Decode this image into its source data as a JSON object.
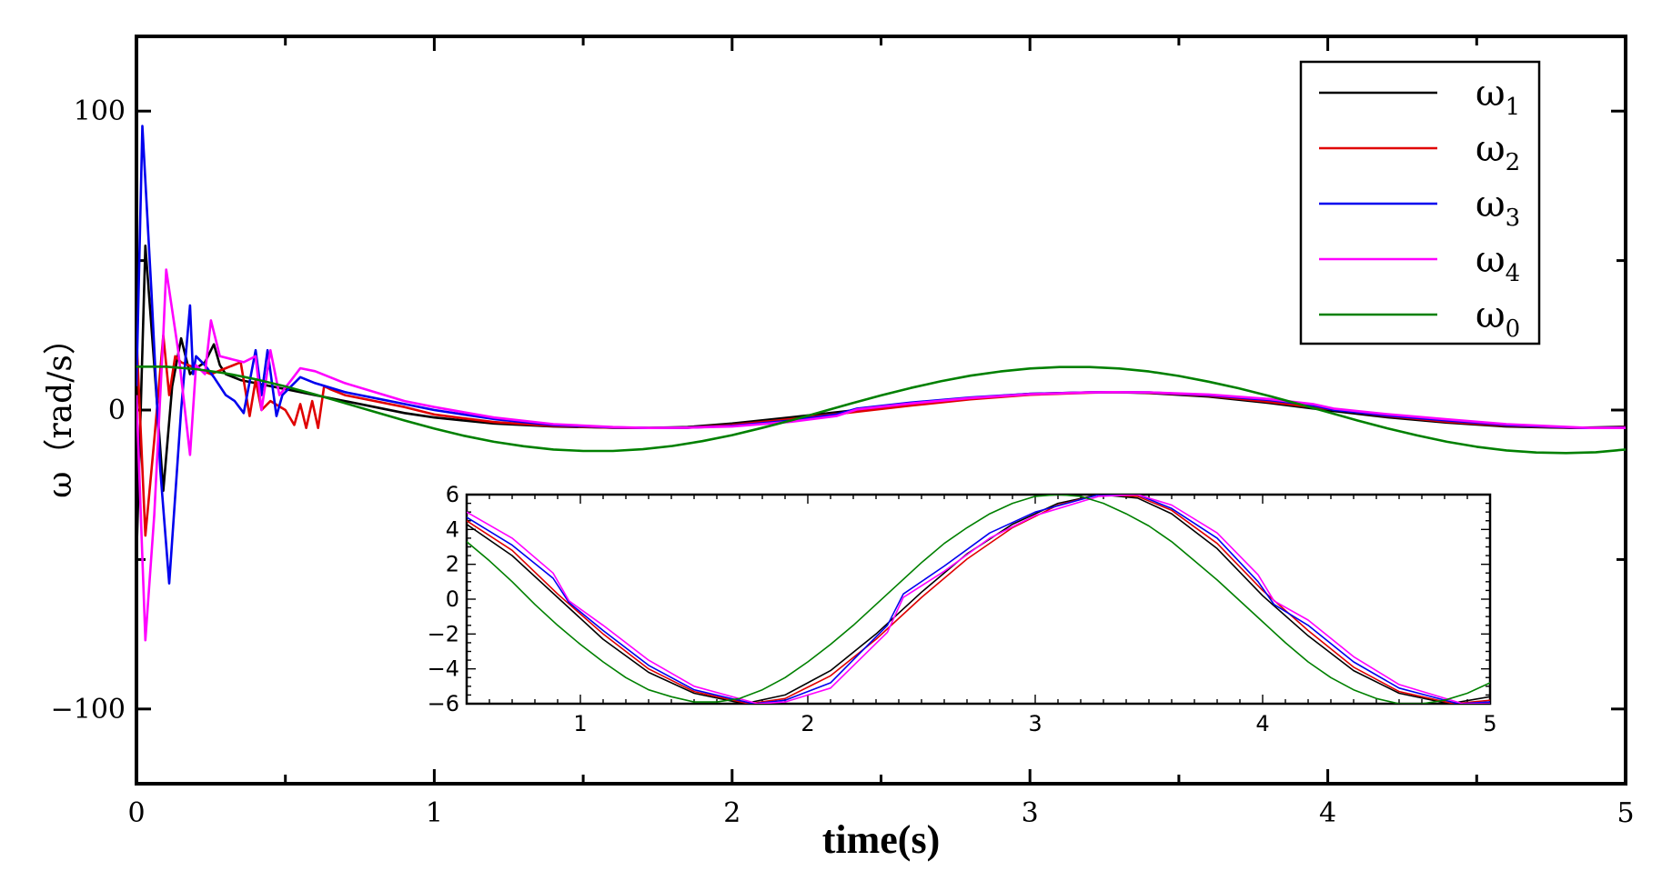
{
  "chart_data": [
    {
      "type": "line",
      "xlabel": "time(s)",
      "ylabel": "ω（rad/s）",
      "xlim": [
        0,
        5
      ],
      "ylim": [
        -125,
        125
      ],
      "xticks": [
        0,
        1,
        2,
        3,
        4,
        5
      ],
      "xtick_labels": [
        "0",
        "1",
        "2",
        "3",
        "4",
        "5"
      ],
      "yticks": [
        -100,
        0,
        100
      ],
      "ytick_labels": [
        "−100",
        "0",
        "100"
      ],
      "grid": false,
      "legend_position": "top-right",
      "series": [
        {
          "name": "ω1",
          "legend_symbol": "ω",
          "legend_sub": "1",
          "color": "#000000",
          "x": [
            0,
            0.03,
            0.06,
            0.09,
            0.12,
            0.15,
            0.18,
            0.2,
            0.23,
            0.26,
            0.28,
            0.3,
            0.35,
            0.4,
            0.45,
            0.5,
            0.6,
            0.7,
            0.8,
            0.9,
            1.0,
            1.2,
            1.4,
            1.6,
            1.72,
            1.85,
            2.0,
            2.2,
            2.4,
            2.6,
            2.8,
            3.0,
            3.2,
            3.28,
            3.4,
            3.6,
            3.8,
            4.0,
            4.2,
            4.4,
            4.6,
            4.82,
            5.0
          ],
          "y": [
            -50,
            55,
            15,
            -27,
            8,
            24,
            12,
            14,
            16,
            22,
            15,
            12,
            10,
            9,
            8,
            7,
            5,
            3,
            1,
            -1,
            -2.5,
            -4.5,
            -5.5,
            -5.9,
            -6,
            -5.7,
            -4.5,
            -2.4,
            -0.2,
            2,
            4,
            5.4,
            5.9,
            6,
            5.7,
            4.5,
            2.4,
            -0.1,
            -2.4,
            -4.2,
            -5.5,
            -6,
            -5.6
          ]
        },
        {
          "name": "ω2",
          "legend_symbol": "ω",
          "legend_sub": "2",
          "color": "#e00000",
          "x": [
            0,
            0.03,
            0.06,
            0.09,
            0.11,
            0.13,
            0.15,
            0.2,
            0.25,
            0.3,
            0.35,
            0.38,
            0.4,
            0.42,
            0.45,
            0.5,
            0.53,
            0.55,
            0.57,
            0.59,
            0.61,
            0.63,
            0.65,
            0.7,
            0.8,
            0.9,
            1.0,
            1.2,
            1.4,
            1.6,
            1.72,
            1.85,
            2.0,
            2.2,
            2.4,
            2.6,
            2.8,
            3.0,
            3.2,
            3.28,
            3.4,
            3.6,
            3.8,
            4.0,
            4.2,
            4.4,
            4.6,
            4.84,
            5.0
          ],
          "y": [
            25,
            -42,
            -10,
            25,
            5,
            18,
            16,
            14,
            12,
            14,
            16,
            -2,
            10,
            0,
            3,
            0,
            -5,
            2,
            -6,
            3,
            -6,
            8,
            7,
            5,
            3,
            1,
            -1.5,
            -4,
            -5.3,
            -5.9,
            -6,
            -5.9,
            -5,
            -3,
            -0.8,
            1.5,
            3.6,
            5.1,
            5.8,
            6,
            5.8,
            4.8,
            2.8,
            0.4,
            -2,
            -3.9,
            -5.2,
            -6,
            -5.8
          ]
        },
        {
          "name": "ω3",
          "legend_symbol": "ω",
          "legend_sub": "3",
          "color": "#0000ee",
          "x": [
            0,
            0.02,
            0.05,
            0.08,
            0.11,
            0.15,
            0.18,
            0.19,
            0.2,
            0.23,
            0.26,
            0.3,
            0.33,
            0.36,
            0.4,
            0.42,
            0.44,
            0.47,
            0.49,
            0.52,
            0.55,
            0.6,
            0.7,
            0.8,
            0.9,
            1.0,
            1.2,
            1.4,
            1.6,
            1.72,
            1.85,
            2.0,
            2.2,
            2.35,
            2.42,
            2.6,
            2.8,
            3.0,
            3.2,
            3.28,
            3.4,
            3.6,
            3.8,
            3.95,
            4.02,
            4.2,
            4.4,
            4.6,
            4.86,
            5.0
          ],
          "y": [
            8,
            95,
            40,
            -20,
            -58,
            0,
            35,
            12,
            18,
            15,
            11,
            5,
            3,
            -1,
            20,
            5,
            20,
            -2,
            5,
            8,
            11,
            9,
            6,
            4,
            2,
            0,
            -3,
            -5,
            -5.8,
            -6,
            -5.9,
            -5.3,
            -3.5,
            -1.5,
            0.5,
            2.5,
            4.2,
            5.4,
            5.9,
            6,
            5.9,
            5,
            3.4,
            1.6,
            0.1,
            -1.8,
            -3.5,
            -5,
            -6,
            -5.9
          ]
        },
        {
          "name": "ω4",
          "legend_symbol": "ω",
          "legend_sub": "4",
          "color": "#ff00ff",
          "x": [
            0,
            0.03,
            0.06,
            0.09,
            0.1,
            0.14,
            0.18,
            0.2,
            0.23,
            0.25,
            0.28,
            0.32,
            0.36,
            0.4,
            0.42,
            0.45,
            0.48,
            0.52,
            0.55,
            0.6,
            0.7,
            0.8,
            0.9,
            1.0,
            1.2,
            1.4,
            1.6,
            1.72,
            1.85,
            2.0,
            2.2,
            2.35,
            2.42,
            2.6,
            2.8,
            3.0,
            3.2,
            3.28,
            3.4,
            3.6,
            3.8,
            3.95,
            4.02,
            4.2,
            4.4,
            4.6,
            4.88,
            5.0
          ],
          "y": [
            5,
            -77,
            -35,
            25,
            47,
            20,
            -15,
            15,
            12,
            30,
            18,
            17,
            16,
            18,
            0,
            20,
            5,
            10,
            14,
            13,
            9,
            6,
            3,
            1,
            -2.5,
            -4.7,
            -5.7,
            -6,
            -5.9,
            -5.5,
            -3.9,
            -2,
            0.2,
            2.2,
            4,
            5.3,
            5.9,
            6,
            5.9,
            5.2,
            3.7,
            2,
            0.5,
            -1.4,
            -3.1,
            -4.7,
            -6,
            -6
          ]
        },
        {
          "name": "ω0",
          "legend_symbol": "ω",
          "legend_sub": "0",
          "color": "#008000",
          "x": [
            0,
            0.1,
            0.2,
            0.3,
            0.4,
            0.5,
            0.6,
            0.7,
            0.8,
            0.9,
            1.0,
            1.1,
            1.2,
            1.3,
            1.4,
            1.5,
            1.6,
            1.7,
            1.8,
            1.9,
            2.0,
            2.1,
            2.2,
            2.3,
            2.4,
            2.5,
            2.6,
            2.7,
            2.8,
            2.9,
            3.0,
            3.1,
            3.2,
            3.3,
            3.4,
            3.5,
            3.6,
            3.7,
            3.8,
            3.9,
            4.0,
            4.1,
            4.2,
            4.3,
            4.4,
            4.5,
            4.6,
            4.7,
            4.8,
            4.9,
            5.0
          ],
          "y": [
            14.5,
            14.5,
            13.7,
            12.3,
            10.3,
            7.9,
            5.2,
            2.3,
            -0.6,
            -3.5,
            -6.2,
            -8.6,
            -10.6,
            -12.1,
            -13.2,
            -13.7,
            -13.7,
            -13.1,
            -12,
            -10.4,
            -8.4,
            -6.0,
            -3.4,
            -0.6,
            2.2,
            4.9,
            7.4,
            9.6,
            11.5,
            12.9,
            13.9,
            14.4,
            14.4,
            13.9,
            12.9,
            11.4,
            9.5,
            7.3,
            4.8,
            2.1,
            -0.7,
            -3.5,
            -6.1,
            -8.5,
            -10.6,
            -12.3,
            -13.5,
            -14.2,
            -14.4,
            -14.1,
            -13.2
          ]
        }
      ]
    },
    {
      "type": "line",
      "role": "inset",
      "xlim": [
        0.5,
        5
      ],
      "ylim": [
        -6,
        6
      ],
      "xticks": [
        1,
        2,
        3,
        4,
        5
      ],
      "xtick_labels": [
        "1",
        "2",
        "3",
        "4",
        "5"
      ],
      "yticks": [
        -6,
        -4,
        -2,
        0,
        2,
        4,
        6
      ],
      "ytick_labels": [
        "−6",
        "−4",
        "−2",
        "0",
        "2",
        "4",
        "6"
      ],
      "series": [
        {
          "color": "#000000",
          "x": [
            0.5,
            0.7,
            0.9,
            1.1,
            1.3,
            1.5,
            1.72,
            1.9,
            2.1,
            2.3,
            2.5,
            2.7,
            2.9,
            3.1,
            3.28,
            3.45,
            3.6,
            3.8,
            4.0,
            4.2,
            4.4,
            4.6,
            4.82,
            5.0
          ],
          "y": [
            4.3,
            2.5,
            0.1,
            -2.3,
            -4.2,
            -5.4,
            -6,
            -5.5,
            -4.1,
            -2,
            0.4,
            2.6,
            4.3,
            5.5,
            6,
            5.8,
            4.9,
            2.9,
            0.2,
            -2.1,
            -4.1,
            -5.4,
            -6,
            -5.6
          ]
        },
        {
          "color": "#e00000",
          "x": [
            0.5,
            0.7,
            0.9,
            1.1,
            1.3,
            1.5,
            1.74,
            1.9,
            2.1,
            2.3,
            2.5,
            2.7,
            2.9,
            3.1,
            3.28,
            3.45,
            3.6,
            3.8,
            4.0,
            4.2,
            4.4,
            4.6,
            4.84,
            5.0
          ],
          "y": [
            4.5,
            2.8,
            0.3,
            -2.0,
            -4.0,
            -5.3,
            -6,
            -5.7,
            -4.4,
            -2.3,
            0.1,
            2.3,
            4.1,
            5.4,
            6,
            5.9,
            5.1,
            3.2,
            0.5,
            -1.8,
            -3.9,
            -5.3,
            -6,
            -5.8
          ]
        },
        {
          "color": "#0000ee",
          "x": [
            0.5,
            0.7,
            0.88,
            0.95,
            1.1,
            1.3,
            1.5,
            1.76,
            1.9,
            2.1,
            2.35,
            2.42,
            2.6,
            2.8,
            3.0,
            3.28,
            3.45,
            3.6,
            3.8,
            3.98,
            4.05,
            4.2,
            4.4,
            4.6,
            4.86,
            5.0
          ],
          "y": [
            4.7,
            3.1,
            1.2,
            -0.2,
            -1.8,
            -3.8,
            -5.2,
            -6,
            -5.8,
            -4.8,
            -1.5,
            0.3,
            1.9,
            3.8,
            5.0,
            6,
            6,
            5.2,
            3.5,
            1.0,
            -0.3,
            -1.5,
            -3.6,
            -5.1,
            -6,
            -5.9
          ]
        },
        {
          "color": "#ff00ff",
          "x": [
            0.5,
            0.7,
            0.88,
            0.95,
            1.1,
            1.3,
            1.5,
            1.78,
            1.9,
            2.1,
            2.35,
            2.42,
            2.6,
            2.8,
            3.0,
            3.28,
            3.45,
            3.6,
            3.8,
            3.98,
            4.05,
            4.2,
            4.4,
            4.6,
            4.88,
            5.0
          ],
          "y": [
            5.0,
            3.5,
            1.5,
            -0.1,
            -1.5,
            -3.5,
            -5.0,
            -6,
            -5.9,
            -5.1,
            -1.9,
            0.1,
            1.6,
            3.5,
            4.8,
            5.9,
            6,
            5.4,
            3.8,
            1.4,
            -0.1,
            -1.2,
            -3.3,
            -4.9,
            -6,
            -6
          ]
        },
        {
          "color": "#008000",
          "x": [
            0.5,
            0.6,
            0.7,
            0.8,
            0.9,
            1.0,
            1.1,
            1.2,
            1.3,
            1.4,
            1.5,
            1.6,
            1.7,
            1.8,
            1.9,
            2.0,
            2.1,
            2.2,
            2.3,
            2.4,
            2.5,
            2.6,
            2.7,
            2.8,
            2.9,
            3.0,
            3.1,
            3.2,
            3.3,
            3.4,
            3.5,
            3.6,
            3.7,
            3.8,
            3.9,
            4.0,
            4.1,
            4.2,
            4.3,
            4.4,
            4.5,
            4.6,
            4.7,
            4.8,
            4.9,
            5.0
          ],
          "y": [
            3.3,
            2.2,
            1.0,
            -0.3,
            -1.5,
            -2.6,
            -3.6,
            -4.5,
            -5.2,
            -5.6,
            -5.9,
            -5.9,
            -5.7,
            -5.2,
            -4.5,
            -3.6,
            -2.6,
            -1.5,
            -0.3,
            0.9,
            2.1,
            3.2,
            4.1,
            4.9,
            5.5,
            5.9,
            6.0,
            5.9,
            5.5,
            4.9,
            4.2,
            3.3,
            2.2,
            1.1,
            -0.1,
            -1.3,
            -2.5,
            -3.6,
            -4.5,
            -5.2,
            -5.7,
            -6.0,
            -6.0,
            -5.8,
            -5.4,
            -4.8
          ]
        }
      ]
    }
  ]
}
